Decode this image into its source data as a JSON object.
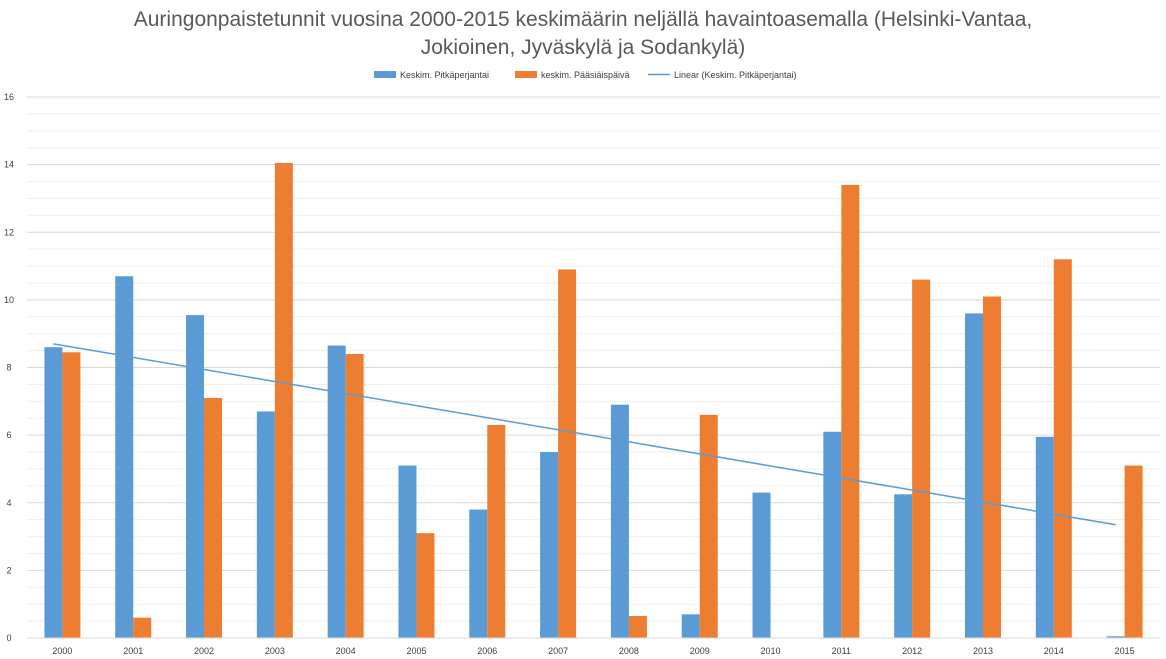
{
  "chart_data": {
    "type": "bar",
    "title": "Auringonpaistetunnit vuosina 2000-2015 keskimäärin neljällä havaintoasemalla (Helsinki-Vantaa, Jokioinen, Jyväskylä ja Sodankylä)",
    "title_lines": [
      "Auringonpaistetunnit vuosina 2000-2015 keskimäärin neljällä havaintoasemalla (Helsinki-Vantaa,",
      "Jokioinen, Jyväskylä ja Sodankylä)"
    ],
    "categories": [
      "2000",
      "2001",
      "2002",
      "2003",
      "2004",
      "2005",
      "2006",
      "2007",
      "2008",
      "2009",
      "2010",
      "2011",
      "2012",
      "2013",
      "2014",
      "2015"
    ],
    "series": [
      {
        "name": "Keskim. Pitkäperjantai",
        "color": "#5b9bd5",
        "values": [
          8.6,
          10.7,
          9.55,
          6.7,
          8.65,
          5.1,
          3.8,
          5.5,
          6.9,
          0.7,
          4.3,
          6.1,
          4.25,
          9.6,
          5.95,
          0.05
        ]
      },
      {
        "name": "keskim. Pääsiäispäivä",
        "color": "#ed7d31",
        "values": [
          8.45,
          0.6,
          7.1,
          14.05,
          8.4,
          3.1,
          6.3,
          10.9,
          0.65,
          6.6,
          0,
          13.4,
          10.6,
          10.1,
          11.2,
          5.1
        ]
      }
    ],
    "trendline": {
      "name": "Linear (Keskim. Pitkäperjantai)",
      "series": "Keskim. Pitkäperjantai",
      "type": "linear",
      "start": 8.7,
      "end": 3.35,
      "color": "#5b9bd5"
    },
    "ylim": [
      0,
      16
    ],
    "yticks": [
      "0",
      "2",
      "4",
      "6",
      "8",
      "10",
      "12",
      "14",
      "16"
    ],
    "xlabel": "",
    "ylabel": "",
    "grid": true,
    "legend_position": "top"
  }
}
